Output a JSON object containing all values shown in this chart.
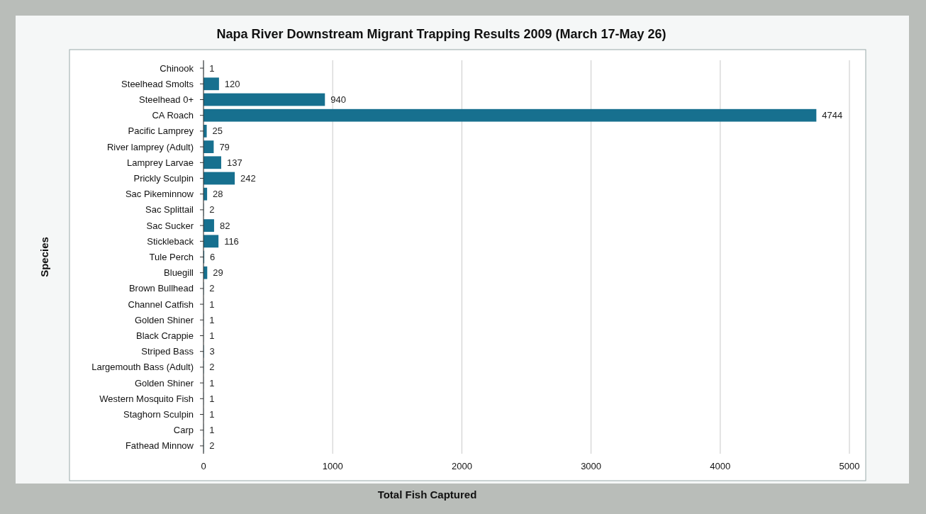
{
  "chart_data": {
    "type": "bar",
    "orientation": "horizontal",
    "title": "Napa River Downstream Migrant Trapping Results 2009 (March 17-May 26)",
    "xlabel": "Total Fish Captured",
    "ylabel": "Species",
    "categories": [
      "Chinook",
      "Steelhead Smolts",
      "Steelhead 0+",
      "CA Roach",
      "Pacific Lamprey",
      "River lamprey (Adult)",
      "Lamprey Larvae",
      "Prickly Sculpin",
      "Sac Pikeminnow",
      "Sac Splittail",
      "Sac Sucker",
      "Stickleback",
      "Tule Perch",
      "Bluegill",
      "Brown Bullhead",
      "Channel Catfish",
      "Golden Shiner",
      "Black Crappie",
      "Striped Bass",
      "Largemouth Bass (Adult)",
      "Golden Shiner",
      "Western Mosquito Fish",
      "Staghorn Sculpin",
      "Carp",
      "Fathead Minnow"
    ],
    "values": [
      1,
      120,
      940,
      4744,
      25,
      79,
      137,
      242,
      28,
      2,
      82,
      116,
      6,
      29,
      2,
      1,
      1,
      1,
      3,
      2,
      1,
      1,
      1,
      1,
      2
    ],
    "color": "#17708f",
    "xlim": [
      0,
      5000
    ],
    "xticks": [
      0,
      1000,
      2000,
      3000,
      4000,
      5000
    ],
    "grid": "x",
    "data_labels": true
  }
}
